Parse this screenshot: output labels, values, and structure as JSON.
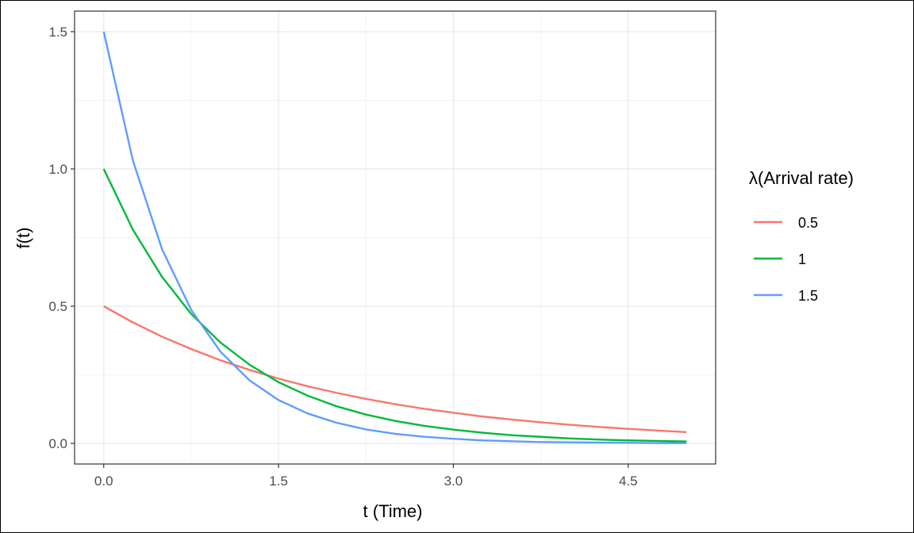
{
  "chart_data": {
    "type": "line",
    "xlabel": "t (Time)",
    "ylabel": "f(t)",
    "xlim": [
      -0.25,
      5.25
    ],
    "ylim": [
      -0.075,
      1.575
    ],
    "x_ticks": [
      0.0,
      1.5,
      3.0,
      4.5
    ],
    "x_tick_labels": [
      "0.0",
      "1.5",
      "3.0",
      "4.5"
    ],
    "y_ticks": [
      0.0,
      0.5,
      1.0,
      1.5
    ],
    "y_tick_labels": [
      "0.0",
      "0.5",
      "1.0",
      "1.5"
    ],
    "grid": true,
    "legend": {
      "title": "λ(Arrival rate)",
      "placement": "right"
    },
    "x": [
      0.0,
      0.25,
      0.5,
      0.75,
      1.0,
      1.25,
      1.5,
      1.75,
      2.0,
      2.25,
      2.5,
      2.75,
      3.0,
      3.25,
      3.5,
      3.75,
      4.0,
      4.25,
      4.5,
      4.75,
      5.0
    ],
    "series": [
      {
        "name": "0.5",
        "color": "#F8766D",
        "values": [
          0.5,
          0.441,
          0.389,
          0.344,
          0.303,
          0.268,
          0.236,
          0.208,
          0.184,
          0.162,
          0.143,
          0.126,
          0.112,
          0.098,
          0.087,
          0.077,
          0.068,
          0.06,
          0.053,
          0.047,
          0.041
        ]
      },
      {
        "name": "1",
        "color": "#00BA38",
        "values": [
          1.0,
          0.779,
          0.607,
          0.472,
          0.368,
          0.287,
          0.223,
          0.174,
          0.135,
          0.105,
          0.082,
          0.064,
          0.05,
          0.039,
          0.03,
          0.024,
          0.018,
          0.014,
          0.011,
          0.009,
          0.007
        ]
      },
      {
        "name": "1.5",
        "color": "#619CFF",
        "values": [
          1.5,
          1.031,
          0.708,
          0.487,
          0.335,
          0.23,
          0.158,
          0.109,
          0.075,
          0.051,
          0.035,
          0.024,
          0.017,
          0.011,
          0.008,
          0.005,
          0.004,
          0.003,
          0.002,
          0.001,
          0.001
        ]
      }
    ]
  }
}
